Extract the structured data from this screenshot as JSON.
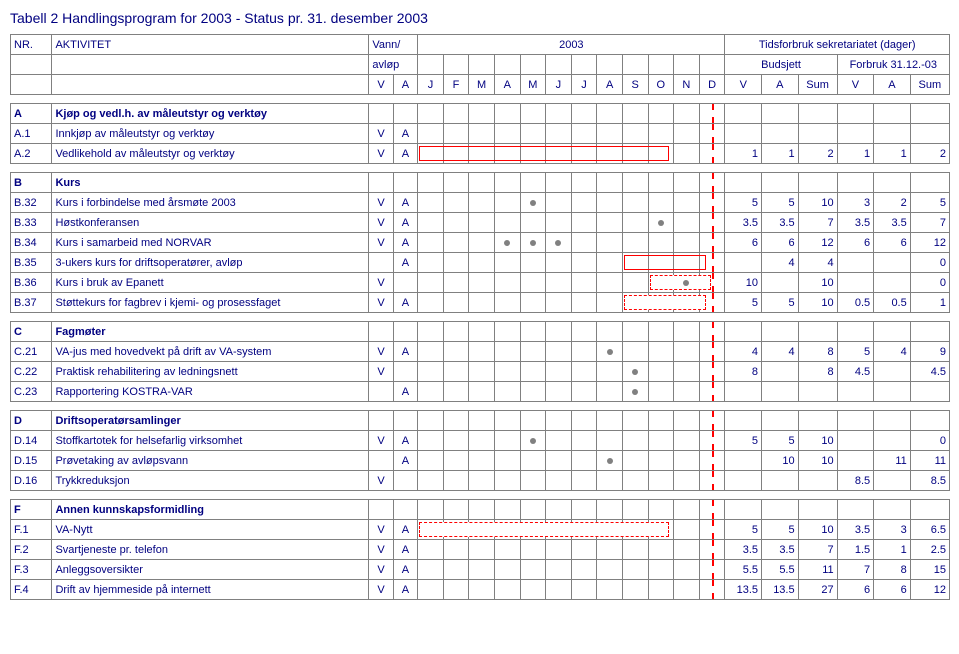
{
  "title": "Tabell 2 Handlingsprogram for 2003 - Status pr. 31. desember 2003",
  "headers": {
    "nr": "NR.",
    "aktivitet": "AKTIVITET",
    "vann": "Vann/",
    "avlop": "avløp",
    "year": "2003",
    "tidsforbruk": "Tidsforbruk sekretariatet (dager)",
    "budsjett": "Budsjett",
    "forbruk": "Forbruk 31.12.-03",
    "months": [
      "V",
      "A",
      "J",
      "F",
      "M",
      "A",
      "M",
      "J",
      "J",
      "A",
      "S",
      "O",
      "N",
      "D"
    ],
    "bud_cols": [
      "V",
      "A",
      "Sum"
    ],
    "fb_cols": [
      "V",
      "A",
      "Sum"
    ]
  },
  "sections": [
    {
      "key": "A",
      "title": "Kjøp og vedl.h. av måleutstyr og verktøy",
      "rows": [
        {
          "nr": "A.1",
          "akt": "Innkjøp av måleutstyr og verktøy",
          "v": "V",
          "a": "A",
          "dots": [],
          "bar": null,
          "bud": [
            "",
            "",
            ""
          ],
          "fb": [
            "",
            "",
            ""
          ]
        },
        {
          "nr": "A.2",
          "akt": "Vedlikehold av måleutstyr og verktøy",
          "v": "V",
          "a": "A",
          "dots": [],
          "bar": {
            "from": 2,
            "to": 13,
            "style": "solid"
          },
          "bud": [
            "1",
            "1",
            "2"
          ],
          "fb": [
            "1",
            "1",
            "2"
          ]
        }
      ]
    },
    {
      "key": "B",
      "title": "Kurs",
      "rows": [
        {
          "nr": "B.32",
          "akt": "Kurs i forbindelse med årsmøte 2003",
          "v": "V",
          "a": "A",
          "dots": [
            6
          ],
          "bar": null,
          "bud": [
            "5",
            "5",
            "10"
          ],
          "fb": [
            "3",
            "2",
            "5"
          ]
        },
        {
          "nr": "B.33",
          "akt": "Høstkonferansen",
          "v": "V",
          "a": "A",
          "dots": [
            11
          ],
          "bar": null,
          "bud": [
            "3.5",
            "3.5",
            "7"
          ],
          "fb": [
            "3.5",
            "3.5",
            "7"
          ]
        },
        {
          "nr": "B.34",
          "akt": "Kurs i samarbeid med NORVAR",
          "v": "V",
          "a": "A",
          "dots": [
            5,
            6,
            7
          ],
          "bar": null,
          "bud": [
            "6",
            "6",
            "12"
          ],
          "fb": [
            "6",
            "6",
            "12"
          ]
        },
        {
          "nr": "B.35",
          "akt": "3-ukers kurs for driftsoperatører, avløp",
          "v": "",
          "a": "A",
          "dots": [],
          "bar": {
            "from": 10,
            "to": 13,
            "style": "solid"
          },
          "bud": [
            "",
            "4",
            "4"
          ],
          "fb": [
            "",
            "",
            "0"
          ]
        },
        {
          "nr": "B.36",
          "akt": "Kurs i bruk av Epanett",
          "v": "V",
          "a": "",
          "dots": [
            12
          ],
          "bar": {
            "from": 11,
            "to": 13,
            "style": "dash"
          },
          "bud": [
            "10",
            "",
            "10"
          ],
          "fb": [
            "",
            "",
            "0"
          ]
        },
        {
          "nr": "B.37",
          "akt": "Støttekurs for fagbrev i kjemi- og prosessfaget",
          "v": "V",
          "a": "A",
          "dots": [],
          "bar": {
            "from": 10,
            "to": 13,
            "style": "dash"
          },
          "bud": [
            "5",
            "5",
            "10"
          ],
          "fb": [
            "0.5",
            "0.5",
            "1"
          ]
        }
      ]
    },
    {
      "key": "C",
      "title": "Fagmøter",
      "rows": [
        {
          "nr": "C.21",
          "akt": "VA-jus med hovedvekt på drift av VA-system",
          "v": "V",
          "a": "A",
          "dots": [
            9
          ],
          "bar": null,
          "bud": [
            "4",
            "4",
            "8"
          ],
          "fb": [
            "5",
            "4",
            "9"
          ]
        },
        {
          "nr": "C.22",
          "akt": "Praktisk rehabilitering av ledningsnett",
          "v": "V",
          "a": "",
          "dots": [
            10
          ],
          "bar": null,
          "bud": [
            "8",
            "",
            "8"
          ],
          "fb": [
            "4.5",
            "",
            "4.5"
          ]
        },
        {
          "nr": "C.23",
          "akt": "Rapportering KOSTRA-VAR",
          "v": "",
          "a": "A",
          "dots": [
            10
          ],
          "bar": null,
          "bud": [
            "",
            "",
            ""
          ],
          "fb": [
            "",
            "",
            ""
          ]
        }
      ]
    },
    {
      "key": "D",
      "title": "Driftsoperatørsamlinger",
      "rows": [
        {
          "nr": "D.14",
          "akt": "Stoffkartotek for helsefarlig virksomhet",
          "v": "V",
          "a": "A",
          "dots": [
            6
          ],
          "bar": null,
          "bud": [
            "5",
            "5",
            "10"
          ],
          "fb": [
            "",
            "",
            "0"
          ]
        },
        {
          "nr": "D.15",
          "akt": "Prøvetaking av avløpsvann",
          "v": "",
          "a": "A",
          "dots": [
            9
          ],
          "bar": null,
          "bud": [
            "",
            "10",
            "10"
          ],
          "fb": [
            "",
            "11",
            "11"
          ]
        },
        {
          "nr": "D.16",
          "akt": "Trykkreduksjon",
          "v": "V",
          "a": "",
          "dots": [],
          "bar": null,
          "bud": [
            "",
            "",
            ""
          ],
          "fb": [
            "8.5",
            "",
            "8.5"
          ]
        }
      ]
    },
    {
      "key": "F",
      "title": "Annen kunnskapsformidling",
      "rows": [
        {
          "nr": "F.1",
          "akt": "VA-Nytt",
          "v": "V",
          "a": "A",
          "dots": [],
          "bar": {
            "from": 2,
            "to": 13,
            "style": "dash"
          },
          "bud": [
            "5",
            "5",
            "10"
          ],
          "fb": [
            "3.5",
            "3",
            "6.5"
          ]
        },
        {
          "nr": "F.2",
          "akt": "Svartjeneste pr. telefon",
          "v": "V",
          "a": "A",
          "dots": [],
          "bar": null,
          "bud": [
            "3.5",
            "3.5",
            "7"
          ],
          "fb": [
            "1.5",
            "1",
            "2.5"
          ]
        },
        {
          "nr": "F.3",
          "akt": "Anleggsoversikter",
          "v": "V",
          "a": "A",
          "dots": [],
          "bar": null,
          "bud": [
            "5.5",
            "5.5",
            "11"
          ],
          "fb": [
            "7",
            "8",
            "15"
          ]
        },
        {
          "nr": "F.4",
          "akt": "Drift av hjemmeside på internett",
          "v": "V",
          "a": "A",
          "dots": [],
          "bar": null,
          "bud": [
            "13.5",
            "13.5",
            "27"
          ],
          "fb": [
            "6",
            "6",
            "12"
          ]
        }
      ]
    }
  ],
  "style": {
    "text_color": "#000080",
    "border_color": "#808080",
    "dot_color": "#808080",
    "bar_border": "#ff0000",
    "dash_line": "#ff0000",
    "font_size": 11
  }
}
